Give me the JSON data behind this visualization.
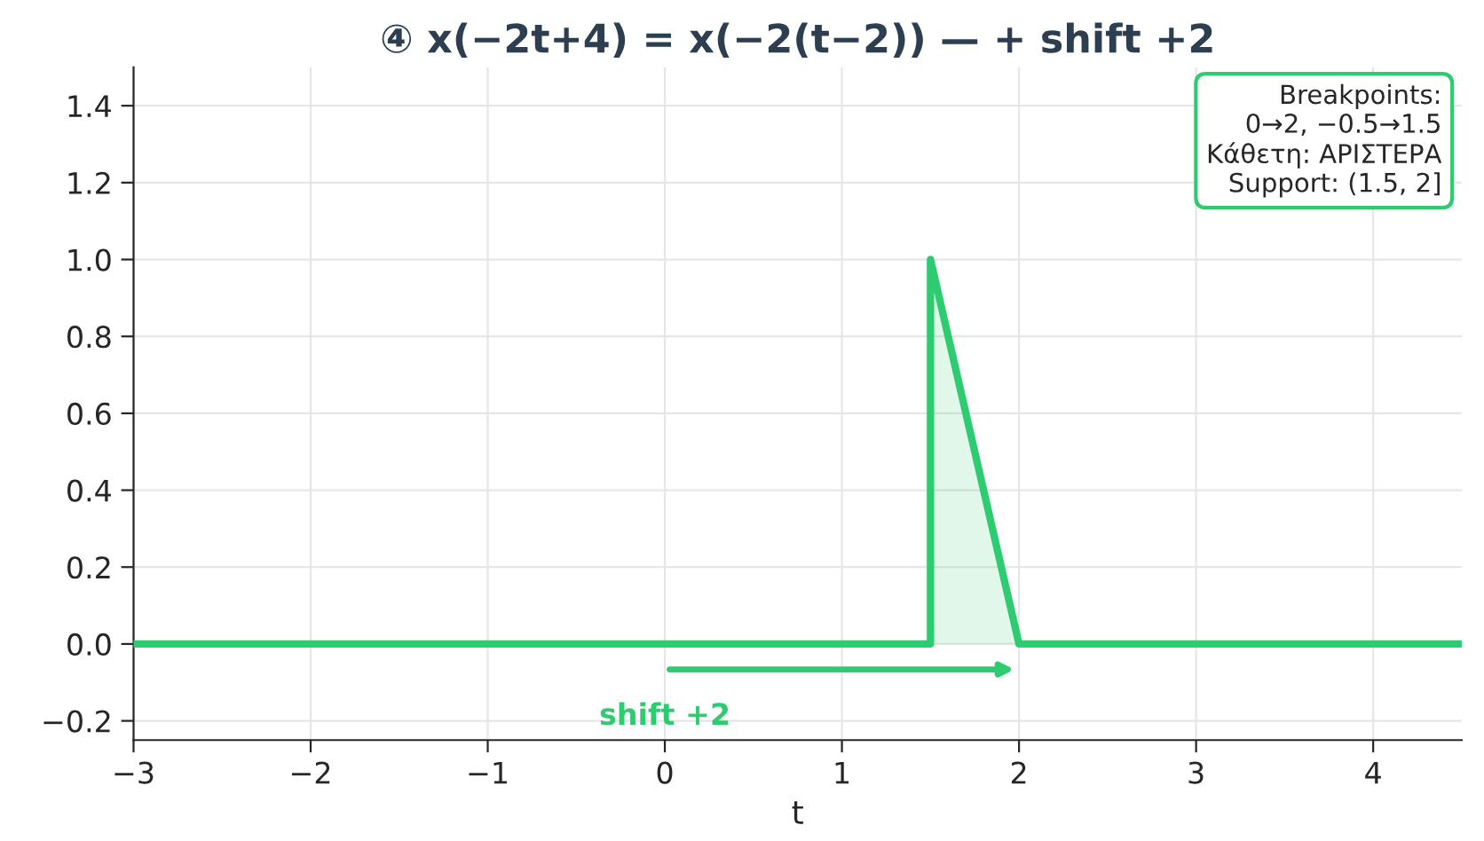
{
  "chart_data": {
    "type": "area",
    "title": "④ x(−2t+4) = x(−2(t−2)) — + shift +2",
    "xlabel": "t",
    "series": [
      {
        "color": "#2ecc71",
        "x": [
          -3,
          1.5,
          1.5,
          2,
          4.5
        ],
        "values": [
          0,
          0,
          1,
          0,
          0
        ]
      }
    ],
    "xlim": [
      -3,
      4.5
    ],
    "ylim": [
      -0.25,
      1.5
    ],
    "xticks": [
      -3,
      -2,
      -1,
      0,
      1,
      2,
      3,
      4
    ],
    "yticks": [
      {
        "value": -0.2,
        "label": "−0.2"
      },
      {
        "value": 0,
        "label": "0.0"
      },
      {
        "value": 0.2,
        "label": "0.2"
      },
      {
        "value": 0.4,
        "label": "0.4"
      },
      {
        "value": 0.6,
        "label": "0.6"
      },
      {
        "value": 0.8,
        "label": "0.8"
      },
      {
        "value": 1.0,
        "label": "1.0"
      },
      {
        "value": 1.2,
        "label": "1.2"
      },
      {
        "value": 1.4,
        "label": "1.4"
      }
    ],
    "grid": true,
    "annotations": [
      "Breakpoints:\n0→2, −0.5→1.5\nΚάθετη: ΑΡΙΣΤΕΡΑ\nSupport: (1.5, 2]",
      "shift +2"
    ]
  }
}
